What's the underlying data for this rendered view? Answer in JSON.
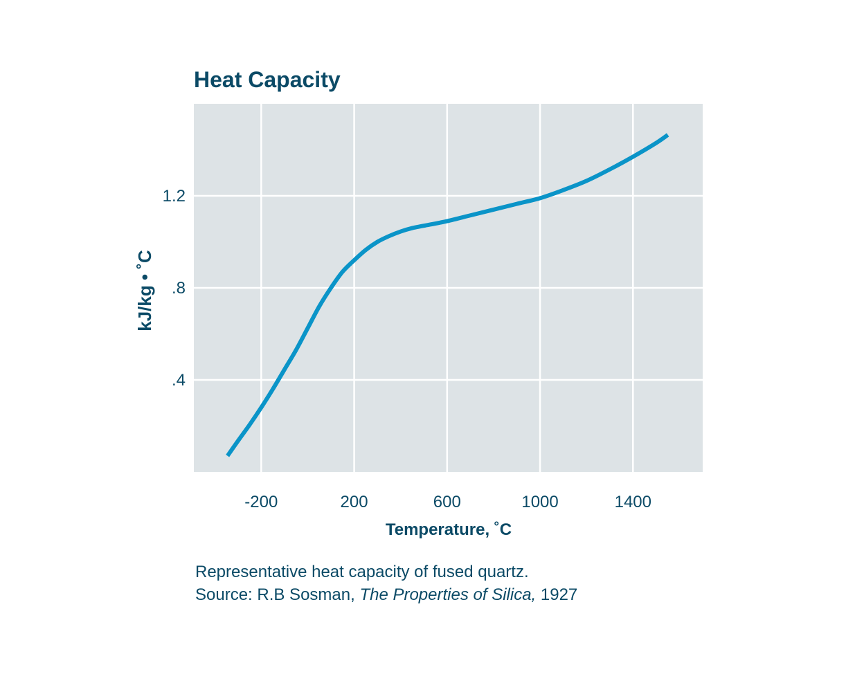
{
  "chart_data": {
    "type": "line",
    "title": "Heat Capacity",
    "xlabel": "Temperature, ˚C",
    "ylabel": "kJ/kg • ˚C",
    "xlim": [
      -490,
      1700
    ],
    "ylim": [
      0.0,
      1.6
    ],
    "x_ticks": [
      -200,
      200,
      600,
      1000,
      1400
    ],
    "x_tick_labels": [
      "-200",
      "200",
      "600",
      "1000",
      "1400"
    ],
    "y_ticks": [
      0.4,
      0.8,
      1.2
    ],
    "y_tick_labels": [
      ".4",
      ".8",
      "1.2"
    ],
    "grid": true,
    "series": [
      {
        "color": "#0a94c8",
        "x": [
          -345,
          -300,
          -250,
          -200,
          -150,
          -100,
          -50,
          0,
          50,
          100,
          150,
          200,
          250,
          300,
          350,
          400,
          450,
          500,
          600,
          700,
          800,
          900,
          1000,
          1100,
          1200,
          1300,
          1400,
          1500,
          1550
        ],
        "y": [
          0.07,
          0.135,
          0.205,
          0.28,
          0.36,
          0.445,
          0.53,
          0.625,
          0.72,
          0.8,
          0.87,
          0.92,
          0.965,
          1.0,
          1.025,
          1.045,
          1.06,
          1.07,
          1.09,
          1.115,
          1.14,
          1.165,
          1.19,
          1.225,
          1.265,
          1.315,
          1.37,
          1.43,
          1.465
        ]
      }
    ]
  },
  "caption": {
    "line1": "Representative heat capacity of fused quartz.",
    "source_prefix": "Source: R.B Sosman, ",
    "source_title": "The Properties of Silica,",
    "source_year": " 1927"
  },
  "colors": {
    "text": "#0b4a66",
    "plot_bg": "#dde3e6",
    "grid": "#ffffff",
    "line": "#0a94c8"
  }
}
